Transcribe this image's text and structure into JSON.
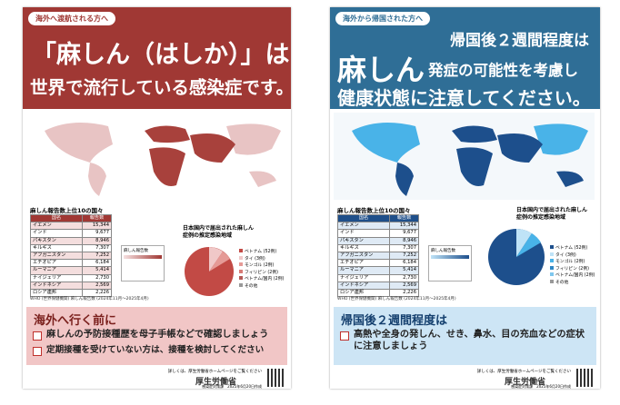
{
  "posters": [
    {
      "tag": "海外へ渡航される方へ",
      "headline": [
        "「麻しん（はしか）」は",
        "世界で流行している感染症です。"
      ],
      "table": {
        "title": "麻しん報告数上位10の国々",
        "header": [
          "国名",
          "報告数"
        ],
        "rows": [
          [
            "イエメン",
            "15,344"
          ],
          [
            "インド",
            "9,677"
          ],
          [
            "パキスタン",
            "8,946"
          ],
          [
            "キルギス",
            "7,307"
          ],
          [
            "アフガニスタン",
            "7,252"
          ],
          [
            "エチオピア",
            "6,184"
          ],
          [
            "ルーマニア",
            "5,414"
          ],
          [
            "ナイジェリア",
            "2,730"
          ],
          [
            "インドネシア",
            "2,569"
          ],
          [
            "ロシア連邦",
            "2,226"
          ]
        ]
      },
      "map_legend": "麻しん報告数",
      "source": "WHO (世界保健機関) 麻しん報告数 (2024年11月〜2025年4月)",
      "pie": {
        "title": "日本国内で届出された麻しん症例の推定感染地域",
        "legend": [
          "ベトナム (52例)",
          "タイ (3例)",
          "モンゴル (2例)",
          "フィリピン (2例)",
          "ベトナム/国内 (2例)",
          "その他"
        ]
      },
      "action": {
        "title": "海外へ行く前に",
        "items": [
          "麻しんの予防接種歴を母子手帳などで確認しましょう",
          "定期接種を受けていない方は、接種を検討してください"
        ]
      },
      "footer": {
        "note": "詳しくは、厚生労働省ホームページをご覧ください",
        "logo": "厚生労働省",
        "credit": "感染症対策課　2025年6月20日作成"
      }
    },
    {
      "tag": "海外から帰国された方へ",
      "headline": [
        "帰国後２週間程度は",
        "麻しん",
        "発症の可能性を考慮し",
        "健康状態に注意してください。"
      ],
      "table": {
        "title": "麻しん報告数上位10の国々",
        "header": [
          "国名",
          "報告数"
        ],
        "rows": [
          [
            "イエメン",
            "15,344"
          ],
          [
            "インド",
            "9,677"
          ],
          [
            "パキスタン",
            "8,946"
          ],
          [
            "キルギス",
            "7,307"
          ],
          [
            "アフガニスタン",
            "7,252"
          ],
          [
            "エチオピア",
            "6,184"
          ],
          [
            "ルーマニア",
            "5,414"
          ],
          [
            "ナイジェリア",
            "2,730"
          ],
          [
            "インドネシア",
            "2,569"
          ],
          [
            "ロシア連邦",
            "2,226"
          ]
        ]
      },
      "map_legend": "麻しん報告数",
      "source": "WHO (世界保健機関) 麻しん報告数 (2024年11月〜2025年4月)",
      "pie": {
        "title": "日本国内で届出された麻しん症例の推定感染地域",
        "legend": [
          "ベトナム (52例)",
          "タイ (3例)",
          "モンゴル (2例)",
          "フィリピン (2例)",
          "ベトナム/国内 (2例)",
          "その他"
        ]
      },
      "action": {
        "title": "帰国後２週間程度は",
        "items": [
          "高熱や全身の発しん、せき、鼻水、目の充血などの症状に注意しましょう"
        ]
      },
      "footer": {
        "note": "詳しくは、厚生労働省ホームページをご覧ください",
        "logo": "厚生労働省",
        "credit": "感染症対策課　2025年6月20日作成"
      }
    }
  ]
}
